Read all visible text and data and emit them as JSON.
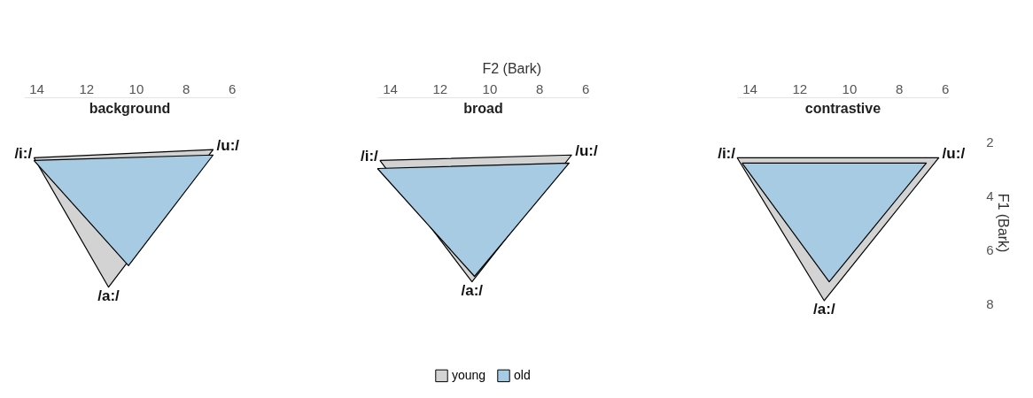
{
  "chart_data": [
    {
      "type": "area",
      "title": "background",
      "xlim": [
        14.5,
        6
      ],
      "ylim": [
        8,
        2
      ],
      "xticks": [
        14,
        12,
        10,
        8,
        6
      ],
      "yticks": [
        2,
        4,
        6,
        8
      ],
      "tick_labels": "x",
      "grid": false,
      "series": [
        {
          "color": "#d3d3d3",
          "x": [
            14.1,
            6.9,
            11.1,
            14.1
          ],
          "values": [
            2.6,
            2.3,
            7.4,
            2.6
          ]
        },
        {
          "color": "#a6cbe3",
          "x": [
            14.1,
            6.9,
            10.3,
            14.1
          ],
          "values": [
            2.7,
            2.5,
            6.6,
            2.7
          ]
        }
      ],
      "annotations": [
        {
          "text": "/i:/",
          "x": 14.1,
          "y": 2.6
        },
        {
          "text": "/u:/",
          "x": 6.9,
          "y": 2.3
        },
        {
          "text": "/a:/",
          "x": 11.1,
          "y": 7.4
        }
      ]
    },
    {
      "type": "area",
      "title": "broad",
      "xlabel": "F2 (Bark)",
      "xlim": [
        14.5,
        6
      ],
      "ylim": [
        8,
        2
      ],
      "xticks": [
        14,
        12,
        10,
        8,
        6
      ],
      "yticks": [
        2,
        4,
        6,
        8
      ],
      "tick_labels": "x",
      "grid": false,
      "legend": "bottom",
      "series": [
        {
          "name": "young",
          "color": "#d3d3d3",
          "x": [
            14.4,
            6.7,
            10.7,
            14.4
          ],
          "values": [
            2.7,
            2.5,
            7.2,
            2.7
          ]
        },
        {
          "name": "old",
          "color": "#a6cbe3",
          "x": [
            14.5,
            6.8,
            10.6,
            14.5
          ],
          "values": [
            3.0,
            2.8,
            7.0,
            3.0
          ]
        }
      ],
      "annotations": [
        {
          "text": "/i:/",
          "x": 14.4,
          "y": 2.7
        },
        {
          "text": "/u:/",
          "x": 6.7,
          "y": 2.5
        },
        {
          "text": "/a:/",
          "x": 10.7,
          "y": 7.2
        }
      ]
    },
    {
      "type": "area",
      "title": "contrastive",
      "ylabel": "F1 (Bark)",
      "xlim": [
        14.5,
        6
      ],
      "ylim": [
        8,
        2
      ],
      "xticks": [
        14,
        12,
        10,
        8,
        6
      ],
      "yticks": [
        2,
        4,
        6,
        8
      ],
      "grid": false,
      "series": [
        {
          "color": "#d3d3d3",
          "x": [
            14.5,
            6.4,
            11.0,
            14.5
          ],
          "values": [
            2.6,
            2.6,
            7.9,
            2.6
          ]
        },
        {
          "color": "#a6cbe3",
          "x": [
            14.3,
            6.9,
            10.8,
            14.3
          ],
          "values": [
            2.8,
            2.8,
            7.2,
            2.8
          ]
        }
      ],
      "annotations": [
        {
          "text": "/i:/",
          "x": 14.5,
          "y": 2.6
        },
        {
          "text": "/u:/",
          "x": 6.4,
          "y": 2.6
        },
        {
          "text": "/a:/",
          "x": 11.0,
          "y": 7.9
        }
      ]
    }
  ]
}
